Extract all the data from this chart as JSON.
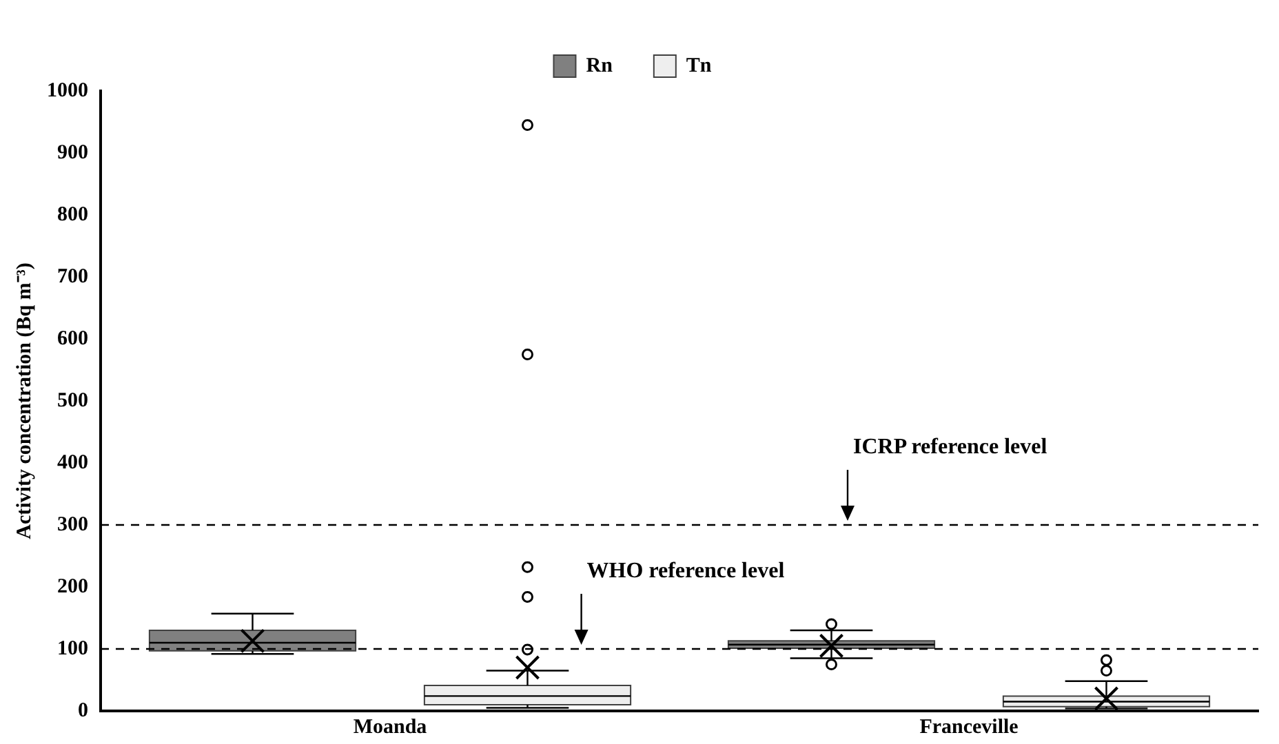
{
  "chart_data": {
    "type": "box",
    "ylabel": "Activity concentration (Bq m⁻³)",
    "categories": [
      "Moanda",
      "Franceville"
    ],
    "series": [
      {
        "name": "Rn",
        "color": "#808080",
        "boxes": [
          {
            "low": 92,
            "q1": 97,
            "median": 110,
            "q3": 130,
            "high": 157,
            "mean": 113
          },
          {
            "low": 85,
            "q1": 101,
            "median": 107,
            "q3": 113,
            "high": 130,
            "mean": 105,
            "outliers": [
              140,
              75
            ]
          }
        ]
      },
      {
        "name": "Tn",
        "color": "#eeeeee",
        "boxes": [
          {
            "low": 5,
            "q1": 10,
            "median": 24,
            "q3": 41,
            "high": 65,
            "mean": 70,
            "outliers": [
              945,
              575,
              232,
              184,
              99
            ]
          },
          {
            "low": 4,
            "q1": 7,
            "median": 15,
            "q3": 24,
            "high": 48,
            "mean": 20,
            "outliers": [
              82,
              65
            ]
          }
        ]
      }
    ],
    "ylim": [
      0,
      1000
    ],
    "yticks": [
      0,
      100,
      200,
      300,
      400,
      500,
      600,
      700,
      800,
      900,
      1000
    ],
    "ref_lines": [
      {
        "axis": "y",
        "value": 300,
        "label": "ICRP reference level",
        "line_style": "dashed"
      },
      {
        "axis": "y",
        "value": 100,
        "label": "WHO reference level",
        "line_style": "dashed"
      }
    ],
    "grid": false,
    "legend": "top"
  }
}
